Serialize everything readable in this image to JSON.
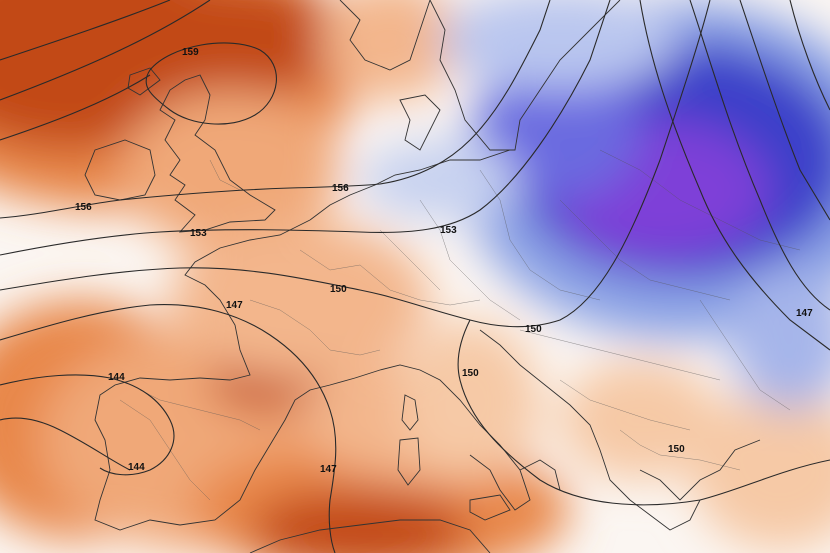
{
  "map": {
    "colors": {
      "warm_deep": "#c24a12",
      "warm_mid": "#e8874a",
      "warm_light": "#f6c9a6",
      "neutral": "#fbf6f2",
      "cool_light": "#d6dff3",
      "cool_mid": "#8da4e6",
      "cool_deep": "#3b3fc9",
      "cool_core": "#7e3fd8",
      "line": "#2a2a2a"
    },
    "contour_labels": [
      {
        "id": "c159",
        "text": "159"
      },
      {
        "id": "c156a",
        "text": "156"
      },
      {
        "id": "c156b",
        "text": "156"
      },
      {
        "id": "c153a",
        "text": "153"
      },
      {
        "id": "c153b",
        "text": "153"
      },
      {
        "id": "c150a",
        "text": "150"
      },
      {
        "id": "c150b",
        "text": "150"
      },
      {
        "id": "c150c",
        "text": "150"
      },
      {
        "id": "c150d",
        "text": "150"
      },
      {
        "id": "c147a",
        "text": "147"
      },
      {
        "id": "c147b",
        "text": "147"
      },
      {
        "id": "c147c",
        "text": "147"
      },
      {
        "id": "c144a",
        "text": "144"
      },
      {
        "id": "c144b",
        "text": "144"
      }
    ]
  }
}
